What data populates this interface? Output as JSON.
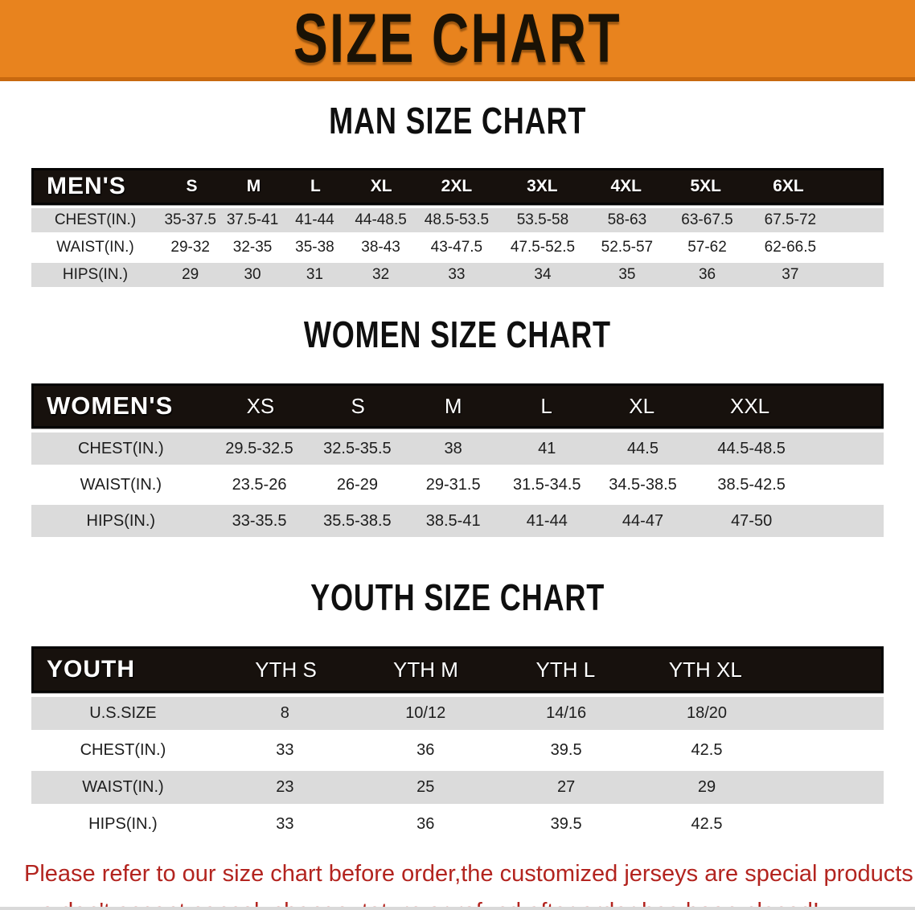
{
  "banner": {
    "title": "SIZE CHART"
  },
  "colors": {
    "banner_orange": "#E8831E",
    "banner_edge": "#C8690F",
    "header_black": "#17110D",
    "stripe_gray": "#DBDBDB",
    "note_red": "#B3241F"
  },
  "tables": [
    {
      "id": "mens",
      "title": "MAN SIZE CHART",
      "header_label": "MEN'S",
      "columns": [
        "S",
        "M",
        "L",
        "XL",
        "2XL",
        "3XL",
        "4XL",
        "5XL",
        "6XL"
      ],
      "rows": [
        {
          "label": "CHEST(IN.)",
          "values": [
            "35-37.5",
            "37.5-41",
            "41-44",
            "44-48.5",
            "48.5-53.5",
            "53.5-58",
            "58-63",
            "63-67.5",
            "67.5-72"
          ]
        },
        {
          "label": "WAIST(IN.)",
          "values": [
            "29-32",
            "32-35",
            "35-38",
            "38-43",
            "43-47.5",
            "47.5-52.5",
            "52.5-57",
            "57-62",
            "62-66.5"
          ]
        },
        {
          "label": "HIPS(IN.)",
          "values": [
            "29",
            "30",
            "31",
            "32",
            "33",
            "34",
            "35",
            "36",
            "37"
          ]
        }
      ]
    },
    {
      "id": "women",
      "title": "WOMEN SIZE CHART",
      "header_label": "WOMEN'S",
      "columns": [
        "XS",
        "S",
        "M",
        "L",
        "XL",
        "XXL"
      ],
      "rows": [
        {
          "label": "CHEST(IN.)",
          "values": [
            "29.5-32.5",
            "32.5-35.5",
            "38",
            "41",
            "44.5",
            "44.5-48.5"
          ]
        },
        {
          "label": "WAIST(IN.)",
          "values": [
            "23.5-26",
            "26-29",
            "29-31.5",
            "31.5-34.5",
            "34.5-38.5",
            "38.5-42.5"
          ]
        },
        {
          "label": "HIPS(IN.)",
          "values": [
            "33-35.5",
            "35.5-38.5",
            "38.5-41",
            "41-44",
            "44-47",
            "47-50"
          ]
        }
      ]
    },
    {
      "id": "youth",
      "title": "YOUTH SIZE CHART",
      "header_label": "YOUTH",
      "columns": [
        "YTH S",
        "YTH M",
        "YTH L",
        "YTH XL"
      ],
      "rows": [
        {
          "label": "U.S.SIZE",
          "values": [
            "8",
            "10/12",
            "14/16",
            "18/20"
          ]
        },
        {
          "label": "CHEST(IN.)",
          "values": [
            "33",
            "36",
            "39.5",
            "42.5"
          ]
        },
        {
          "label": "WAIST(IN.)",
          "values": [
            "23",
            "25",
            "27",
            "29"
          ]
        },
        {
          "label": "HIPS(IN.)",
          "values": [
            "33",
            "36",
            "39.5",
            "42.5"
          ]
        }
      ]
    }
  ],
  "footer": {
    "line1": "Please refer to our size chart before order,the customized jerseys are special products,",
    "line2": "we don't accept cancel, change, teturn or refund after order has been placed!"
  }
}
